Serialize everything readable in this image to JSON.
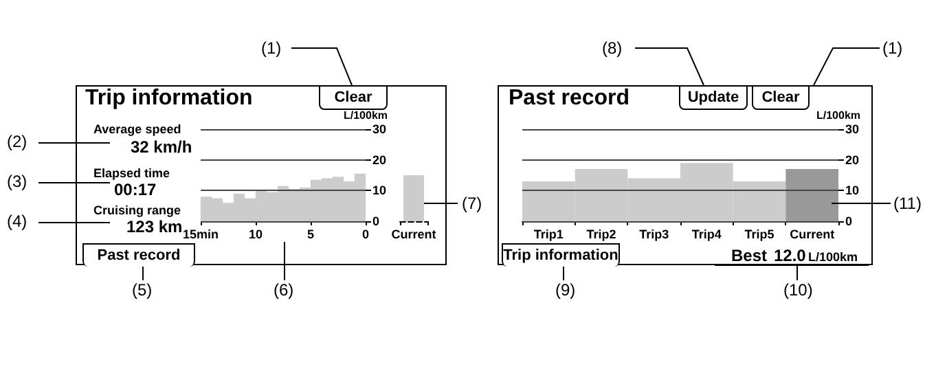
{
  "chart_data": [
    {
      "type": "bar",
      "title": "Trip information",
      "ylabel": "L/100km",
      "x": [
        14.5,
        13.5,
        12.5,
        11.5,
        10.5,
        9.5,
        8.5,
        7.5,
        6.5,
        5.5,
        4.5,
        3.5,
        2.5,
        1.5,
        0.5
      ],
      "values": [
        8,
        7.5,
        6,
        9,
        7.5,
        10,
        9.5,
        11.5,
        10.5,
        11,
        13.5,
        14,
        14.5,
        13,
        15.5
      ],
      "color": "#cccccc",
      "xlim": [
        15,
        0
      ],
      "xticks": [
        {
          "value": 15,
          "label": "15min"
        },
        10,
        5,
        0
      ],
      "ylim": [
        0,
        30
      ],
      "yticks": [
        0,
        10,
        20,
        30
      ],
      "grid": "y",
      "annotations": [
        "Average speed",
        "32 km/h",
        "Elapsed time",
        "00:17",
        "Cruising range",
        "123 km",
        "Clear",
        "Past record",
        "(1)",
        "(2)",
        "(3)",
        "(4)",
        "(5)",
        "(6)",
        "(7)"
      ]
    },
    {
      "type": "bar",
      "categories": [
        "Current"
      ],
      "values": [
        15
      ],
      "color": "#cccccc",
      "ylim": [
        0,
        30
      ],
      "yticks": [
        0,
        10,
        20,
        30
      ],
      "grid": false,
      "tick_labels": "x"
    },
    {
      "type": "bar",
      "title": "Past record",
      "ylabel": "L/100km",
      "categories": [
        "Trip1",
        "Trip2",
        "Trip3",
        "Trip4",
        "Trip5",
        "Current"
      ],
      "values": [
        13,
        17,
        14,
        19,
        13,
        17
      ],
      "colors": [
        "#cccccc",
        "#cccccc",
        "#cccccc",
        "#cccccc",
        "#cccccc",
        "#999999"
      ],
      "ylim": [
        0,
        30
      ],
      "yticks": [
        0,
        10,
        20,
        30
      ],
      "grid": "y",
      "annotations": [
        "Update",
        "Clear",
        "Trip information",
        "Best",
        "12.0",
        "L/100km",
        "(8)",
        "(1)",
        "(9)",
        "(10)",
        "(11)"
      ]
    }
  ]
}
